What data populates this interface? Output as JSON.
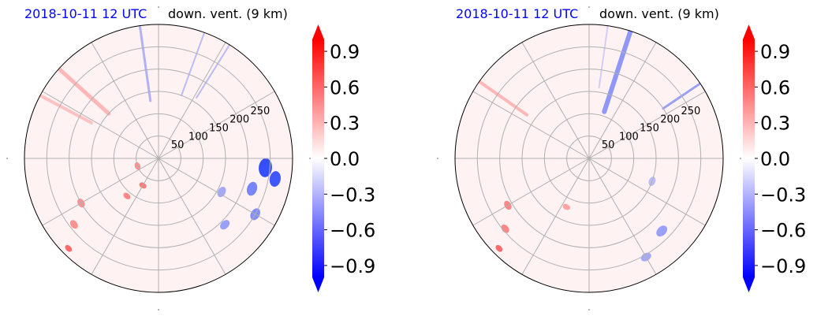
{
  "chart_data": [
    {
      "type": "heatmap",
      "projection": "polar",
      "title_left": "2018-10-11 12 UTC",
      "title_right": "down. vent. (9 km)",
      "radial_ticks": [
        50,
        100,
        150,
        200,
        250
      ],
      "angular_gridlines_deg": [
        0,
        30,
        60,
        90,
        120,
        150,
        180,
        210,
        240,
        270,
        300,
        330
      ],
      "r_max": 300,
      "grid": true,
      "colorbar": {
        "cmap": "bwr",
        "range": [
          -1.0,
          1.0
        ],
        "ticks": [
          "0.9",
          "0.6",
          "0.3",
          "0.0",
          "−0.3",
          "−0.6",
          "−0.9"
        ],
        "extend": "both",
        "levels": 20
      },
      "features": [
        {
          "kind": "radial-streak",
          "sign": "neg",
          "az": 352,
          "r0": 130,
          "r1": 300,
          "w": 3,
          "a": 0.35
        },
        {
          "kind": "radial-streak",
          "sign": "neg",
          "az": 20,
          "r0": 150,
          "r1": 300,
          "w": 2,
          "a": 0.3
        },
        {
          "kind": "radial-streak",
          "sign": "neg",
          "az": 32,
          "r0": 160,
          "r1": 300,
          "w": 2,
          "a": 0.3
        },
        {
          "kind": "radial-streak",
          "sign": "pos",
          "az": 312,
          "r0": 150,
          "r1": 300,
          "w": 5,
          "a": 0.3
        },
        {
          "kind": "radial-streak",
          "sign": "pos",
          "az": 298,
          "r0": 170,
          "r1": 300,
          "w": 4,
          "a": 0.25
        },
        {
          "kind": "patch",
          "sign": "neg",
          "az": 95,
          "r": 240,
          "size": 12,
          "a": 0.9
        },
        {
          "kind": "patch",
          "sign": "neg",
          "az": 100,
          "r": 265,
          "size": 10,
          "a": 0.85
        },
        {
          "kind": "patch",
          "sign": "neg",
          "az": 108,
          "r": 220,
          "size": 9,
          "a": 0.6
        },
        {
          "kind": "patch",
          "sign": "neg",
          "az": 120,
          "r": 250,
          "size": 8,
          "a": 0.55
        },
        {
          "kind": "patch",
          "sign": "neg",
          "az": 118,
          "r": 160,
          "size": 7,
          "a": 0.4
        },
        {
          "kind": "patch",
          "sign": "neg",
          "az": 135,
          "r": 210,
          "size": 7,
          "a": 0.45
        },
        {
          "kind": "patch",
          "sign": "pos",
          "az": 210,
          "r": 70,
          "size": 5,
          "a": 0.6
        },
        {
          "kind": "patch",
          "sign": "pos",
          "az": 220,
          "r": 110,
          "size": 5,
          "a": 0.55
        },
        {
          "kind": "patch",
          "sign": "pos",
          "az": 250,
          "r": 50,
          "size": 5,
          "a": 0.5
        },
        {
          "kind": "patch",
          "sign": "pos",
          "az": 240,
          "r": 200,
          "size": 6,
          "a": 0.5
        },
        {
          "kind": "patch",
          "sign": "pos",
          "az": 232,
          "r": 240,
          "size": 6,
          "a": 0.5
        },
        {
          "kind": "patch",
          "sign": "pos",
          "az": 225,
          "r": 285,
          "size": 5,
          "a": 0.7
        }
      ]
    },
    {
      "type": "heatmap",
      "projection": "polar",
      "title_left": "2018-10-11 12 UTC",
      "title_right": "down. vent. (9 km)",
      "radial_ticks": [
        50,
        100,
        150,
        200,
        250
      ],
      "angular_gridlines_deg": [
        0,
        30,
        60,
        90,
        120,
        150,
        180,
        210,
        240,
        270,
        300,
        330
      ],
      "r_max": 300,
      "grid": true,
      "colorbar": {
        "cmap": "bwr",
        "range": [
          -1.0,
          1.0
        ],
        "ticks": [
          "0.9",
          "0.6",
          "0.3",
          "0.0",
          "−0.3",
          "−0.6",
          "−0.9"
        ],
        "extend": "both",
        "levels": 20
      },
      "features": [
        {
          "kind": "radial-streak",
          "sign": "neg",
          "az": 18,
          "r0": 110,
          "r1": 300,
          "w": 6,
          "a": 0.5
        },
        {
          "kind": "radial-streak",
          "sign": "neg",
          "az": 56,
          "r0": 200,
          "r1": 300,
          "w": 3,
          "a": 0.45
        },
        {
          "kind": "radial-streak",
          "sign": "neg",
          "az": 8,
          "r0": 160,
          "r1": 300,
          "w": 2,
          "a": 0.2
        },
        {
          "kind": "radial-streak",
          "sign": "pos",
          "az": 305,
          "r0": 170,
          "r1": 300,
          "w": 4,
          "a": 0.3
        },
        {
          "kind": "patch",
          "sign": "neg",
          "az": 135,
          "r": 230,
          "size": 8,
          "a": 0.45
        },
        {
          "kind": "patch",
          "sign": "neg",
          "az": 150,
          "r": 255,
          "size": 7,
          "a": 0.4
        },
        {
          "kind": "patch",
          "sign": "neg",
          "az": 110,
          "r": 150,
          "size": 6,
          "a": 0.3
        },
        {
          "kind": "patch",
          "sign": "pos",
          "az": 240,
          "r": 210,
          "size": 6,
          "a": 0.55
        },
        {
          "kind": "patch",
          "sign": "pos",
          "az": 230,
          "r": 245,
          "size": 6,
          "a": 0.55
        },
        {
          "kind": "patch",
          "sign": "pos",
          "az": 205,
          "r": 120,
          "size": 5,
          "a": 0.4
        },
        {
          "kind": "patch",
          "sign": "pos",
          "az": 225,
          "r": 285,
          "size": 5,
          "a": 0.7
        }
      ]
    }
  ]
}
